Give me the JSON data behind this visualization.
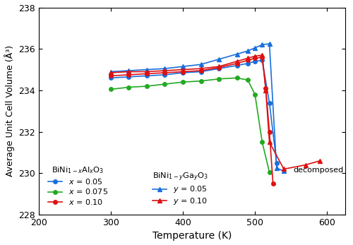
{
  "xlabel": "Temperature (K)",
  "ylabel": "Average Unit Cell Volume (Å³)",
  "xlim": [
    200,
    625
  ],
  "ylim": [
    228,
    238
  ],
  "yticks": [
    228,
    230,
    232,
    234,
    236,
    238
  ],
  "xticks": [
    200,
    300,
    400,
    500,
    600
  ],
  "Al_005_x": [
    300,
    325,
    350,
    375,
    400,
    425,
    450,
    475,
    490,
    500,
    510,
    520,
    530
  ],
  "Al_005_y": [
    234.6,
    234.65,
    234.7,
    234.75,
    234.85,
    234.9,
    235.05,
    235.2,
    235.3,
    235.4,
    235.45,
    233.4,
    230.5
  ],
  "Al_0075_x": [
    300,
    325,
    350,
    375,
    400,
    425,
    450,
    475,
    490,
    500,
    510,
    520
  ],
  "Al_0075_y": [
    234.05,
    234.15,
    234.2,
    234.3,
    234.4,
    234.45,
    234.55,
    234.6,
    234.5,
    233.8,
    231.5,
    230.05
  ],
  "Al_010_x": [
    300,
    325,
    350,
    375,
    400,
    425,
    450,
    475,
    490,
    500,
    510,
    515,
    520,
    525
  ],
  "Al_010_y": [
    234.7,
    234.75,
    234.8,
    234.85,
    234.9,
    234.95,
    235.1,
    235.3,
    235.45,
    235.55,
    235.6,
    234.1,
    232.0,
    229.5
  ],
  "Ga_005_x": [
    300,
    325,
    350,
    375,
    400,
    425,
    450,
    475,
    490,
    500,
    510,
    520,
    530,
    540
  ],
  "Ga_005_y": [
    234.9,
    234.95,
    235.0,
    235.05,
    235.15,
    235.25,
    235.5,
    235.75,
    235.9,
    236.05,
    236.2,
    236.25,
    230.25,
    230.1
  ],
  "Ga_010_x": [
    300,
    325,
    350,
    375,
    400,
    425,
    450,
    475,
    490,
    500,
    510,
    515,
    520,
    540,
    570,
    590
  ],
  "Ga_010_y": [
    234.85,
    234.9,
    234.9,
    234.95,
    235.0,
    235.05,
    235.15,
    235.4,
    235.55,
    235.65,
    235.7,
    234.0,
    231.5,
    230.2,
    230.4,
    230.6
  ],
  "decomposed_x": 553,
  "decomposed_y": 230.15,
  "color_blue": "#1a6fdd",
  "color_green": "#22aa22",
  "color_red": "#dd1111",
  "legend1_title": "BiNi$_{1-x}$Al$_x$O$_3$",
  "legend2_title": "BiNi$_{1-y}$Ga$_y$O$_3$"
}
